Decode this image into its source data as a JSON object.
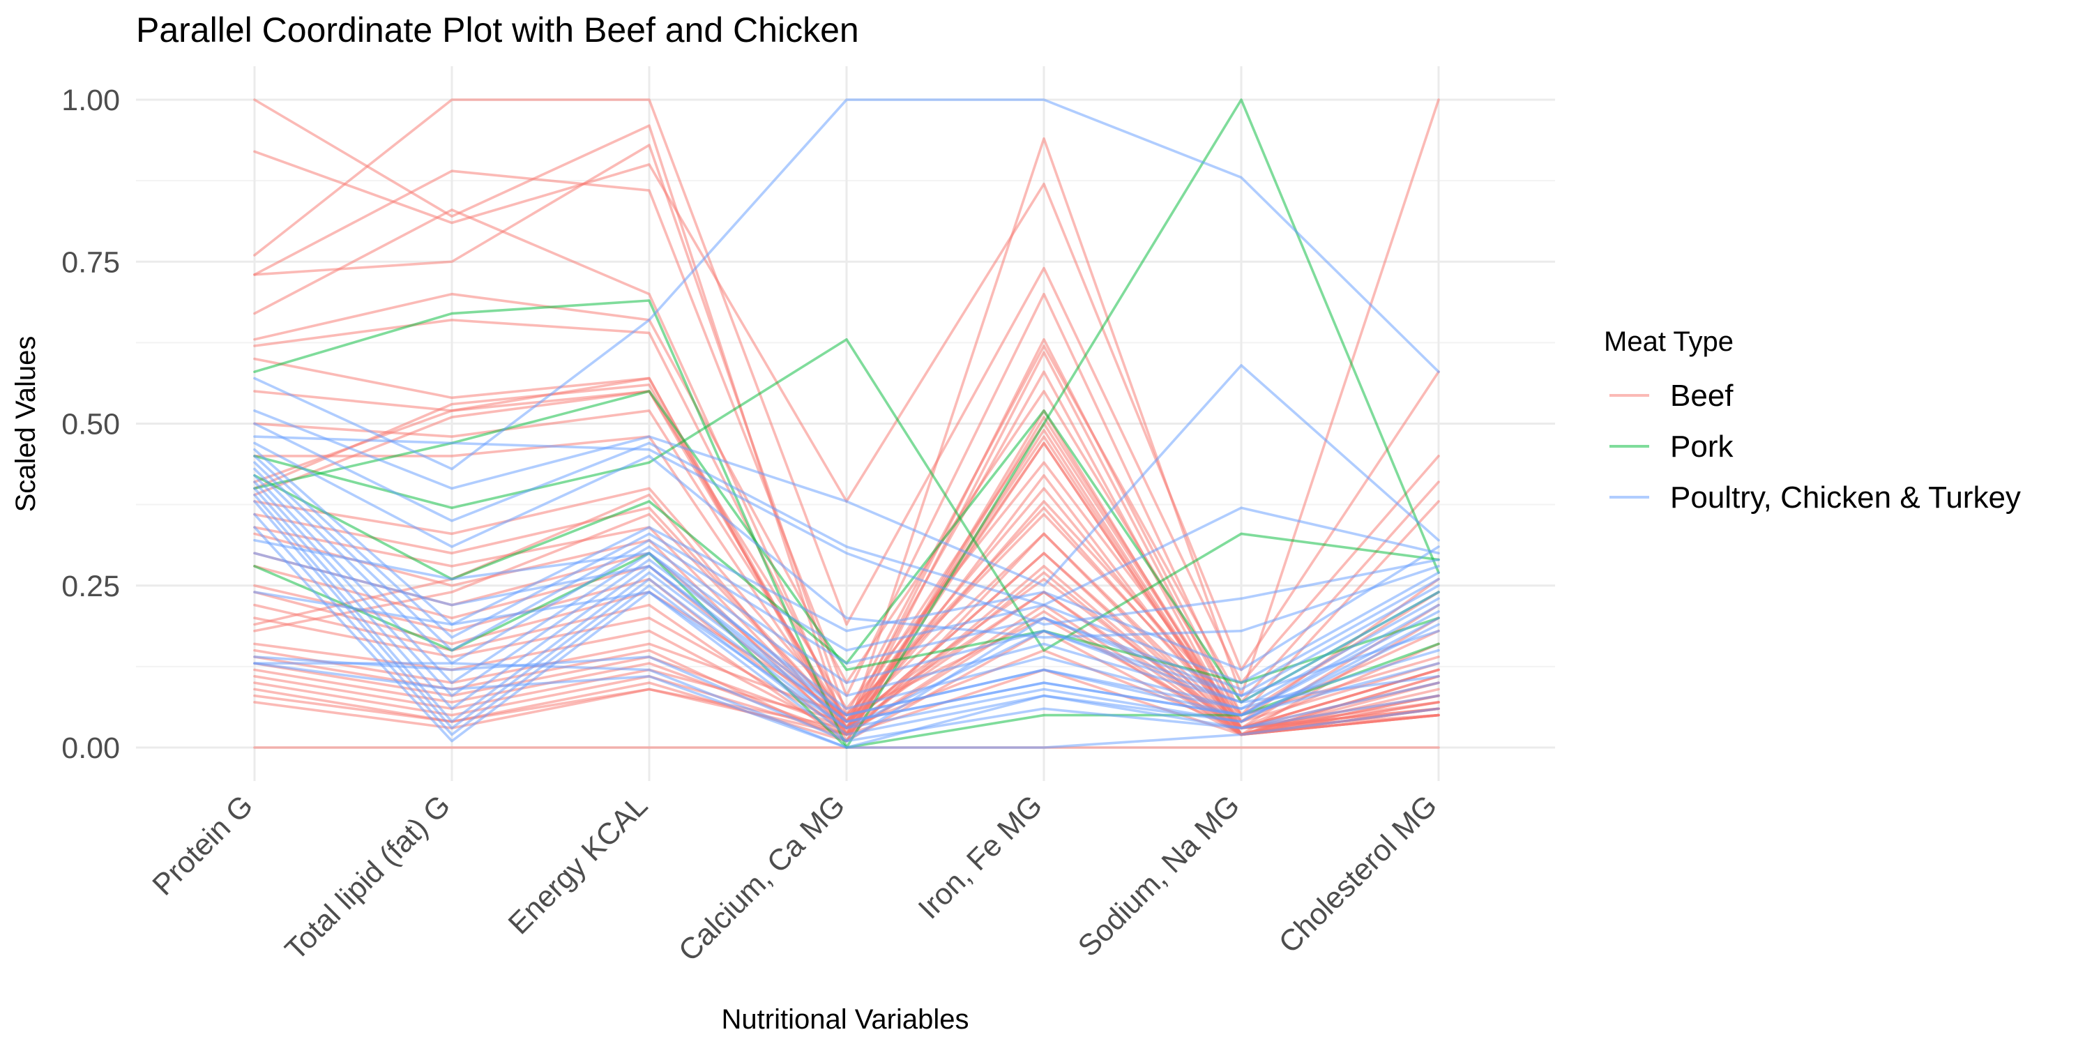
{
  "chart_data": {
    "type": "line",
    "subtype": "parallel-coordinates",
    "title": "Parallel Coordinate Plot with Beef and Chicken",
    "xlabel": "Nutritional Variables",
    "ylabel": "Scaled Values",
    "ylim": [
      -0.045,
      1.05
    ],
    "grid": true,
    "y_ticks": [
      0,
      0.25,
      0.5,
      0.75,
      1.0
    ],
    "y_tick_labels": [
      "0.00",
      "0.25",
      "0.50",
      "0.75",
      "1.00"
    ],
    "categories": [
      "Protein G",
      "Total lipid (fat) G",
      "Energy KCAL",
      "Calcium, Ca MG",
      "Iron, Fe MG",
      "Sodium, Na MG",
      "Cholesterol MG"
    ],
    "legend": {
      "title": "Meat Type",
      "placement": "right",
      "items": [
        {
          "label": "Beef",
          "color": "#F8766D"
        },
        {
          "label": "Pork",
          "color": "#00BA38"
        },
        {
          "label": "Poultry, Chicken & Turkey",
          "color": "#619CFF"
        }
      ]
    },
    "groups": [
      {
        "name": "Beef",
        "color": "#F8766D",
        "lines": [
          [
            1.0,
            0.82,
            0.96,
            0.02,
            0.94,
            0.08,
            1.0
          ],
          [
            0.92,
            0.81,
            0.9,
            0.38,
            0.87,
            0.12,
            0.58
          ],
          [
            0.76,
            1.0,
            1.0,
            0.19,
            0.74,
            0.1,
            0.45
          ],
          [
            0.73,
            0.75,
            0.93,
            0.05,
            0.62,
            0.07,
            0.41
          ],
          [
            0.73,
            0.89,
            0.86,
            0.08,
            0.7,
            0.05,
            0.38
          ],
          [
            0.67,
            0.83,
            0.7,
            0.03,
            0.63,
            0.04,
            0.26
          ],
          [
            0.63,
            0.7,
            0.66,
            0.1,
            0.55,
            0.05,
            0.24
          ],
          [
            0.62,
            0.66,
            0.64,
            0.04,
            0.5,
            0.03,
            0.22
          ],
          [
            0.6,
            0.54,
            0.57,
            0.02,
            0.47,
            0.02,
            0.2
          ],
          [
            0.55,
            0.52,
            0.55,
            0.06,
            0.44,
            0.04,
            0.18
          ],
          [
            0.5,
            0.48,
            0.52,
            0.04,
            0.4,
            0.03,
            0.16
          ],
          [
            0.45,
            0.45,
            0.48,
            0.03,
            0.38,
            0.05,
            0.14
          ],
          [
            0.41,
            0.52,
            0.57,
            0.01,
            0.51,
            0.03,
            0.12
          ],
          [
            0.4,
            0.53,
            0.56,
            0.02,
            0.49,
            0.02,
            0.11
          ],
          [
            0.39,
            0.51,
            0.55,
            0.03,
            0.47,
            0.02,
            0.1
          ],
          [
            0.38,
            0.33,
            0.4,
            0.05,
            0.36,
            0.04,
            0.13
          ],
          [
            0.36,
            0.3,
            0.37,
            0.04,
            0.33,
            0.03,
            0.12
          ],
          [
            0.34,
            0.28,
            0.34,
            0.03,
            0.3,
            0.03,
            0.1
          ],
          [
            0.33,
            0.25,
            0.32,
            0.02,
            0.28,
            0.02,
            0.09
          ],
          [
            0.3,
            0.22,
            0.3,
            0.04,
            0.26,
            0.03,
            0.08
          ],
          [
            0.28,
            0.2,
            0.28,
            0.03,
            0.24,
            0.02,
            0.08
          ],
          [
            0.25,
            0.18,
            0.26,
            0.02,
            0.22,
            0.02,
            0.07
          ],
          [
            0.24,
            0.16,
            0.24,
            0.05,
            0.2,
            0.03,
            0.07
          ],
          [
            0.22,
            0.15,
            0.22,
            0.01,
            0.52,
            0.02,
            0.06
          ],
          [
            0.2,
            0.14,
            0.2,
            0.03,
            0.48,
            0.02,
            0.06
          ],
          [
            0.19,
            0.26,
            0.39,
            0.02,
            0.61,
            0.03,
            0.12
          ],
          [
            0.18,
            0.24,
            0.36,
            0.04,
            0.58,
            0.02,
            0.11
          ],
          [
            0.16,
            0.12,
            0.18,
            0.02,
            0.42,
            0.02,
            0.06
          ],
          [
            0.15,
            0.1,
            0.16,
            0.05,
            0.37,
            0.03,
            0.05
          ],
          [
            0.14,
            0.09,
            0.15,
            0.01,
            0.33,
            0.02,
            0.05
          ],
          [
            0.13,
            0.08,
            0.14,
            0.03,
            0.3,
            0.02,
            0.07
          ],
          [
            0.12,
            0.07,
            0.13,
            0.02,
            0.27,
            0.02,
            0.08
          ],
          [
            0.11,
            0.06,
            0.12,
            0.04,
            0.24,
            0.03,
            0.06
          ],
          [
            0.1,
            0.05,
            0.11,
            0.02,
            0.21,
            0.02,
            0.05
          ],
          [
            0.09,
            0.04,
            0.1,
            0.01,
            0.18,
            0.02,
            0.05
          ],
          [
            0.08,
            0.04,
            0.09,
            0.03,
            0.15,
            0.03,
            0.06
          ],
          [
            0.07,
            0.03,
            0.09,
            0.02,
            0.12,
            0.02,
            0.05
          ],
          [
            0.0,
            0.0,
            0.0,
            0.0,
            0.0,
            0.0,
            0.0
          ]
        ]
      },
      {
        "name": "Pork",
        "color": "#00BA38",
        "lines": [
          [
            0.58,
            0.67,
            0.69,
            0.0,
            0.5,
            1.0,
            0.27
          ],
          [
            0.45,
            0.37,
            0.44,
            0.63,
            0.15,
            0.33,
            0.29
          ],
          [
            0.42,
            0.26,
            0.38,
            0.13,
            0.52,
            0.07,
            0.24
          ],
          [
            0.4,
            0.47,
            0.55,
            0.12,
            0.18,
            0.1,
            0.2
          ],
          [
            0.28,
            0.15,
            0.3,
            0.0,
            0.05,
            0.05,
            0.16
          ]
        ]
      },
      {
        "name": "Poultry, Chicken & Turkey",
        "color": "#619CFF",
        "lines": [
          [
            0.57,
            0.43,
            0.66,
            1.0,
            1.0,
            0.88,
            0.58
          ],
          [
            0.52,
            0.4,
            0.48,
            0.38,
            0.25,
            0.59,
            0.32
          ],
          [
            0.5,
            0.35,
            0.47,
            0.31,
            0.22,
            0.37,
            0.3
          ],
          [
            0.48,
            0.47,
            0.46,
            0.3,
            0.19,
            0.23,
            0.29
          ],
          [
            0.47,
            0.31,
            0.45,
            0.2,
            0.17,
            0.18,
            0.28
          ],
          [
            0.46,
            0.19,
            0.34,
            0.18,
            0.24,
            0.12,
            0.31
          ],
          [
            0.45,
            0.17,
            0.33,
            0.15,
            0.22,
            0.1,
            0.27
          ],
          [
            0.44,
            0.15,
            0.32,
            0.13,
            0.2,
            0.09,
            0.26
          ],
          [
            0.43,
            0.13,
            0.31,
            0.1,
            0.18,
            0.08,
            0.25
          ],
          [
            0.42,
            0.1,
            0.3,
            0.08,
            0.16,
            0.07,
            0.24
          ],
          [
            0.41,
            0.08,
            0.29,
            0.06,
            0.14,
            0.06,
            0.23
          ],
          [
            0.4,
            0.06,
            0.28,
            0.05,
            0.12,
            0.05,
            0.22
          ],
          [
            0.39,
            0.04,
            0.27,
            0.04,
            0.1,
            0.05,
            0.21
          ],
          [
            0.38,
            0.03,
            0.26,
            0.03,
            0.09,
            0.04,
            0.2
          ],
          [
            0.36,
            0.02,
            0.25,
            0.02,
            0.08,
            0.04,
            0.19
          ],
          [
            0.34,
            0.01,
            0.24,
            0.01,
            0.2,
            0.08,
            0.18
          ],
          [
            0.32,
            0.26,
            0.3,
            0.05,
            0.12,
            0.06,
            0.15
          ],
          [
            0.3,
            0.22,
            0.28,
            0.04,
            0.1,
            0.05,
            0.13
          ],
          [
            0.24,
            0.19,
            0.24,
            0.03,
            0.18,
            0.07,
            0.11
          ],
          [
            0.14,
            0.12,
            0.14,
            0.01,
            0.06,
            0.03,
            0.1
          ],
          [
            0.13,
            0.13,
            0.12,
            0.0,
            0.08,
            0.03,
            0.08
          ],
          [
            0.13,
            0.09,
            0.11,
            0.0,
            0.0,
            0.02,
            0.06
          ]
        ]
      }
    ]
  }
}
